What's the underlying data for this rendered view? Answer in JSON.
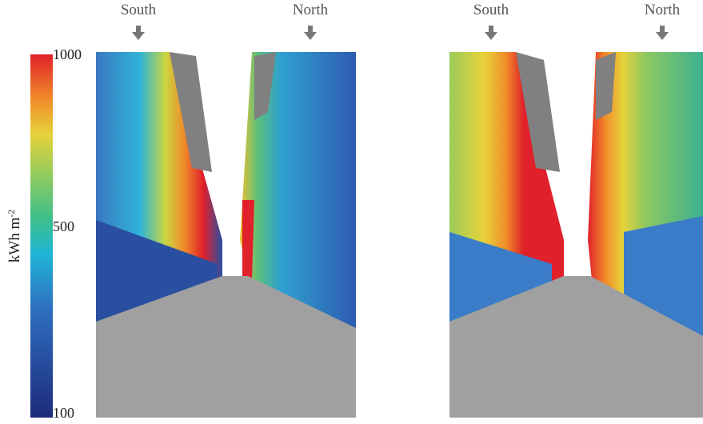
{
  "colorbar": {
    "label": "kWh m",
    "label_sup": "-2",
    "ticks": [
      1000,
      500,
      100
    ]
  },
  "panels": [
    {
      "labels": [
        "South",
        "North"
      ]
    },
    {
      "labels": [
        "South",
        "North"
      ]
    }
  ]
}
